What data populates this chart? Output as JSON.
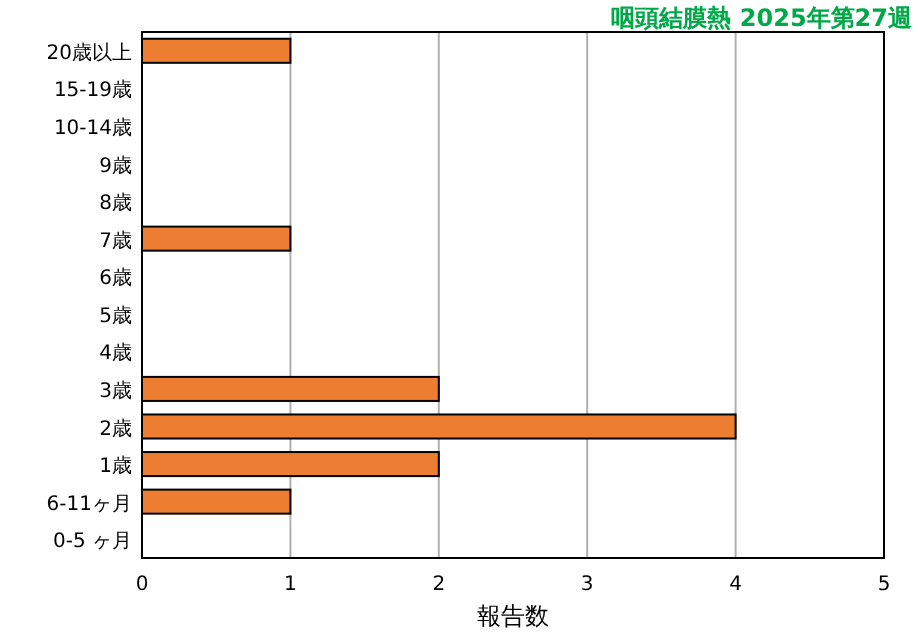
{
  "chart_data": {
    "type": "bar",
    "orientation": "horizontal",
    "title": "咽頭結膜熱 2025年第27週",
    "xlabel": "報告数",
    "categories": [
      "20歳以上",
      "15-19歳",
      "10-14歳",
      "9歳",
      "8歳",
      "7歳",
      "6歳",
      "5歳",
      "4歳",
      "3歳",
      "2歳",
      "1歳",
      "6-11ヶ月",
      "0-5 ヶ月"
    ],
    "values": [
      1,
      0,
      0,
      0,
      0,
      1,
      0,
      0,
      0,
      2,
      4,
      2,
      1,
      0
    ],
    "color": "#ed7d31",
    "xlim": [
      0,
      5
    ],
    "xticks": [
      0,
      1,
      2,
      3,
      4,
      5
    ],
    "grid": "x"
  }
}
